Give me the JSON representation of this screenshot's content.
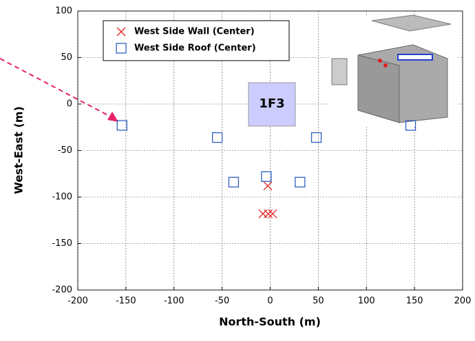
{
  "chart_data": {
    "type": "scatter",
    "xlabel": "North-South (m)",
    "ylabel": "West-East (m)",
    "annotation": "1F3",
    "xlim": [
      -200,
      200
    ],
    "xticks": [
      -200,
      -150,
      -100,
      -50,
      0,
      50,
      100,
      150,
      200
    ],
    "ylim": [
      -200,
      100
    ],
    "yticks": [
      -200,
      -150,
      -100,
      -50,
      0,
      50,
      100
    ],
    "grid": true,
    "series": [
      {
        "name": "West Side Wall (Center)",
        "color": "#e02020",
        "marker": "x",
        "x": [
          -2.5,
          -7.5,
          -2,
          2.5
        ],
        "values": [
          -88,
          -118,
          -118,
          -118
        ]
      },
      {
        "name": "West Side Roof (Center)",
        "color": "#3060c0",
        "marker": "square",
        "x": [
          -154,
          -55,
          -38,
          -4,
          31,
          48,
          146
        ],
        "values": [
          -23,
          -36,
          -84,
          -78,
          -84,
          -36,
          -23
        ]
      }
    ]
  }
}
